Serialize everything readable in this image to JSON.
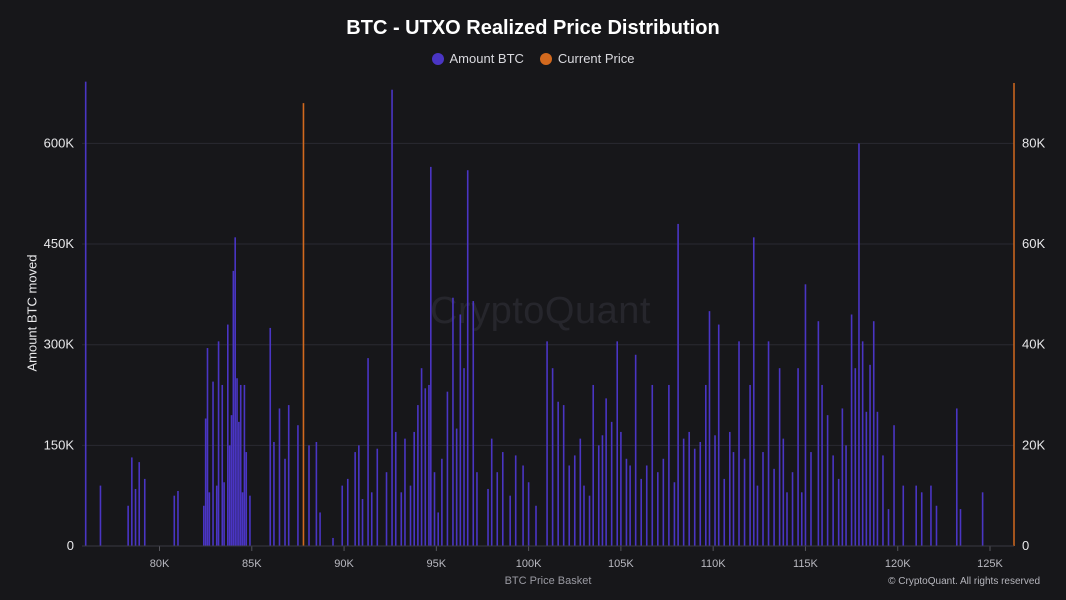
{
  "title": "BTC - UTXO Realized Price Distribution",
  "watermark": "CryptoQuant",
  "copyright": "© CryptoQuant. All rights reserved",
  "legend": [
    {
      "label": "Amount BTC",
      "color": "#4a35c4"
    },
    {
      "label": "Current Price",
      "color": "#d2691e"
    }
  ],
  "chart_data": {
    "type": "bar",
    "title": "BTC - UTXO Realized Price Distribution",
    "xlabel": "BTC Price Basket",
    "ylabel": "Amount BTC moved",
    "x_ticks": [
      "80K",
      "85K",
      "90K",
      "95K",
      "100K",
      "105K",
      "110K",
      "115K",
      "120K",
      "125K"
    ],
    "x_tick_values": [
      80000,
      85000,
      90000,
      95000,
      100000,
      105000,
      110000,
      115000,
      120000,
      125000
    ],
    "xlim": [
      75800,
      126300
    ],
    "y_left_ticks": [
      "0",
      "150K",
      "300K",
      "450K",
      "600K"
    ],
    "y_left_tick_values": [
      0,
      150000,
      300000,
      450000,
      600000
    ],
    "ylim_left": [
      0,
      690000
    ],
    "y_right_ticks": [
      "0",
      "20K",
      "40K",
      "60K",
      "80K"
    ],
    "y_right_tick_values": [
      0,
      20000,
      40000,
      60000,
      80000
    ],
    "ylim_right": [
      0,
      92000
    ],
    "grid": true,
    "legend_position": "top",
    "series": [
      {
        "name": "Amount BTC",
        "color": "#4a35c4",
        "points": [
          [
            76000,
            692000
          ],
          [
            76800,
            90000
          ],
          [
            78300,
            60000
          ],
          [
            78500,
            132000
          ],
          [
            78700,
            85000
          ],
          [
            78900,
            125000
          ],
          [
            79200,
            100000
          ],
          [
            80800,
            75000
          ],
          [
            81000,
            82000
          ],
          [
            82400,
            60000
          ],
          [
            82500,
            190000
          ],
          [
            82600,
            295000
          ],
          [
            82700,
            80000
          ],
          [
            82900,
            245000
          ],
          [
            83100,
            90000
          ],
          [
            83200,
            305000
          ],
          [
            83400,
            240000
          ],
          [
            83500,
            95000
          ],
          [
            83700,
            330000
          ],
          [
            83800,
            150000
          ],
          [
            83900,
            195000
          ],
          [
            84000,
            410000
          ],
          [
            84100,
            460000
          ],
          [
            84200,
            250000
          ],
          [
            84300,
            185000
          ],
          [
            84400,
            240000
          ],
          [
            84500,
            80000
          ],
          [
            84600,
            240000
          ],
          [
            84700,
            140000
          ],
          [
            84900,
            75000
          ],
          [
            86000,
            325000
          ],
          [
            86200,
            155000
          ],
          [
            86500,
            205000
          ],
          [
            86800,
            130000
          ],
          [
            87000,
            210000
          ],
          [
            87500,
            180000
          ],
          [
            88100,
            150000
          ],
          [
            88500,
            155000
          ],
          [
            88700,
            50000
          ],
          [
            89400,
            12000
          ],
          [
            89900,
            90000
          ],
          [
            90200,
            100000
          ],
          [
            90600,
            140000
          ],
          [
            90800,
            150000
          ],
          [
            91000,
            70000
          ],
          [
            91300,
            280000
          ],
          [
            91500,
            80000
          ],
          [
            91800,
            145000
          ],
          [
            92300,
            110000
          ],
          [
            92600,
            680000
          ],
          [
            92800,
            170000
          ],
          [
            93100,
            80000
          ],
          [
            93300,
            160000
          ],
          [
            93600,
            90000
          ],
          [
            93800,
            170000
          ],
          [
            94000,
            210000
          ],
          [
            94200,
            265000
          ],
          [
            94400,
            235000
          ],
          [
            94600,
            240000
          ],
          [
            94700,
            565000
          ],
          [
            94900,
            110000
          ],
          [
            95100,
            50000
          ],
          [
            95300,
            130000
          ],
          [
            95600,
            230000
          ],
          [
            95900,
            370000
          ],
          [
            96100,
            175000
          ],
          [
            96300,
            345000
          ],
          [
            96500,
            265000
          ],
          [
            96700,
            560000
          ],
          [
            97000,
            365000
          ],
          [
            97200,
            110000
          ],
          [
            97800,
            85000
          ],
          [
            98000,
            160000
          ],
          [
            98300,
            110000
          ],
          [
            98600,
            140000
          ],
          [
            99000,
            75000
          ],
          [
            99300,
            135000
          ],
          [
            99700,
            120000
          ],
          [
            100000,
            95000
          ],
          [
            100400,
            60000
          ],
          [
            101000,
            305000
          ],
          [
            101300,
            265000
          ],
          [
            101600,
            215000
          ],
          [
            101900,
            210000
          ],
          [
            102200,
            120000
          ],
          [
            102500,
            135000
          ],
          [
            102800,
            160000
          ],
          [
            103000,
            90000
          ],
          [
            103300,
            75000
          ],
          [
            103500,
            240000
          ],
          [
            103800,
            150000
          ],
          [
            104000,
            165000
          ],
          [
            104200,
            220000
          ],
          [
            104500,
            185000
          ],
          [
            104800,
            305000
          ],
          [
            105000,
            170000
          ],
          [
            105300,
            130000
          ],
          [
            105500,
            120000
          ],
          [
            105800,
            285000
          ],
          [
            106100,
            100000
          ],
          [
            106400,
            120000
          ],
          [
            106700,
            240000
          ],
          [
            107000,
            110000
          ],
          [
            107300,
            130000
          ],
          [
            107600,
            240000
          ],
          [
            107900,
            95000
          ],
          [
            108100,
            480000
          ],
          [
            108400,
            160000
          ],
          [
            108700,
            170000
          ],
          [
            109000,
            145000
          ],
          [
            109300,
            155000
          ],
          [
            109600,
            240000
          ],
          [
            109800,
            350000
          ],
          [
            110100,
            165000
          ],
          [
            110300,
            330000
          ],
          [
            110600,
            100000
          ],
          [
            110900,
            170000
          ],
          [
            111100,
            140000
          ],
          [
            111400,
            305000
          ],
          [
            111700,
            130000
          ],
          [
            112000,
            240000
          ],
          [
            112200,
            460000
          ],
          [
            112400,
            90000
          ],
          [
            112700,
            140000
          ],
          [
            113000,
            305000
          ],
          [
            113300,
            115000
          ],
          [
            113600,
            265000
          ],
          [
            113800,
            160000
          ],
          [
            114000,
            80000
          ],
          [
            114300,
            110000
          ],
          [
            114600,
            265000
          ],
          [
            114800,
            80000
          ],
          [
            115000,
            390000
          ],
          [
            115300,
            140000
          ],
          [
            115700,
            335000
          ],
          [
            115900,
            240000
          ],
          [
            116200,
            195000
          ],
          [
            116500,
            135000
          ],
          [
            116800,
            100000
          ],
          [
            117000,
            205000
          ],
          [
            117200,
            150000
          ],
          [
            117500,
            345000
          ],
          [
            117700,
            265000
          ],
          [
            117900,
            600000
          ],
          [
            118100,
            305000
          ],
          [
            118300,
            200000
          ],
          [
            118500,
            270000
          ],
          [
            118700,
            335000
          ],
          [
            118900,
            200000
          ],
          [
            119200,
            135000
          ],
          [
            119500,
            55000
          ],
          [
            119800,
            180000
          ],
          [
            120300,
            90000
          ],
          [
            121000,
            90000
          ],
          [
            121300,
            80000
          ],
          [
            121800,
            90000
          ],
          [
            122100,
            60000
          ],
          [
            123200,
            205000
          ],
          [
            123400,
            55000
          ],
          [
            124600,
            80000
          ]
        ]
      },
      {
        "name": "Current Price",
        "color": "#d2691e",
        "x": 87800,
        "y_right": 88000
      }
    ]
  }
}
